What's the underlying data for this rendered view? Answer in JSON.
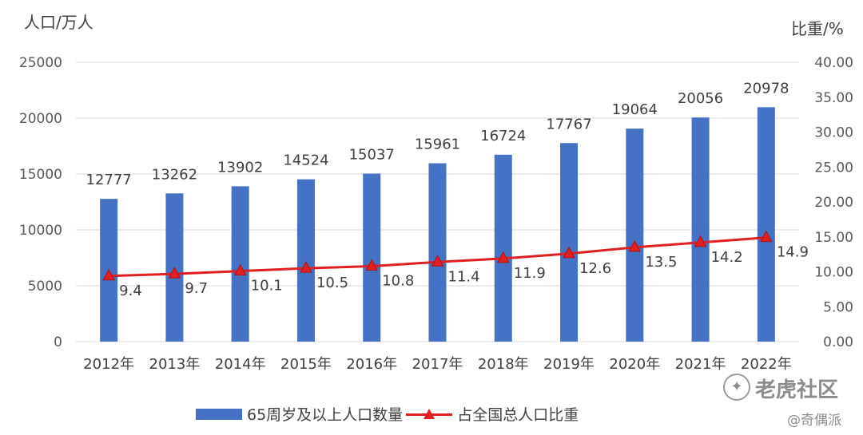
{
  "chart_data": {
    "type": "bar",
    "categories": [
      "2012年",
      "2013年",
      "2014年",
      "2015年",
      "2016年",
      "2017年",
      "2018年",
      "2019年",
      "2020年",
      "2021年",
      "2022年"
    ],
    "ylabel": "人口/万人",
    "y2label": "比重/%",
    "ylim": [
      0,
      25000
    ],
    "yticks": [
      "0",
      "5000",
      "10000",
      "15000",
      "20000",
      "25000"
    ],
    "y2lim": [
      0,
      40
    ],
    "y2ticks": [
      "0.00",
      "5.00",
      "10.00",
      "15.00",
      "20.00",
      "25.00",
      "30.00",
      "35.00",
      "40.00"
    ],
    "grid": true,
    "legend_position": "bottom",
    "series": [
      {
        "name": "65周岁及以上人口数量",
        "type": "bar",
        "axis": "left",
        "color": "#4472C4",
        "values": [
          12777,
          13262,
          13902,
          14524,
          15037,
          15961,
          16724,
          17767,
          19064,
          20056,
          20978
        ],
        "labels": [
          "12777",
          "13262",
          "13902",
          "14524",
          "15037",
          "15961",
          "16724",
          "17767",
          "19064",
          "20056",
          "20978"
        ]
      },
      {
        "name": "占全国总人口比重",
        "type": "line",
        "axis": "right",
        "color": "#E02020",
        "marker": "triangle",
        "values": [
          9.4,
          9.7,
          10.1,
          10.5,
          10.8,
          11.4,
          11.9,
          12.6,
          13.5,
          14.2,
          14.9
        ],
        "labels": [
          "9.4",
          "9.7",
          "10.1",
          "10.5",
          "10.8",
          "11.4",
          "11.9",
          "12.6",
          "13.5",
          "14.2",
          "14.9"
        ]
      }
    ]
  },
  "watermarks": {
    "brand": "老虎社区",
    "credit": "@奇偶派"
  }
}
